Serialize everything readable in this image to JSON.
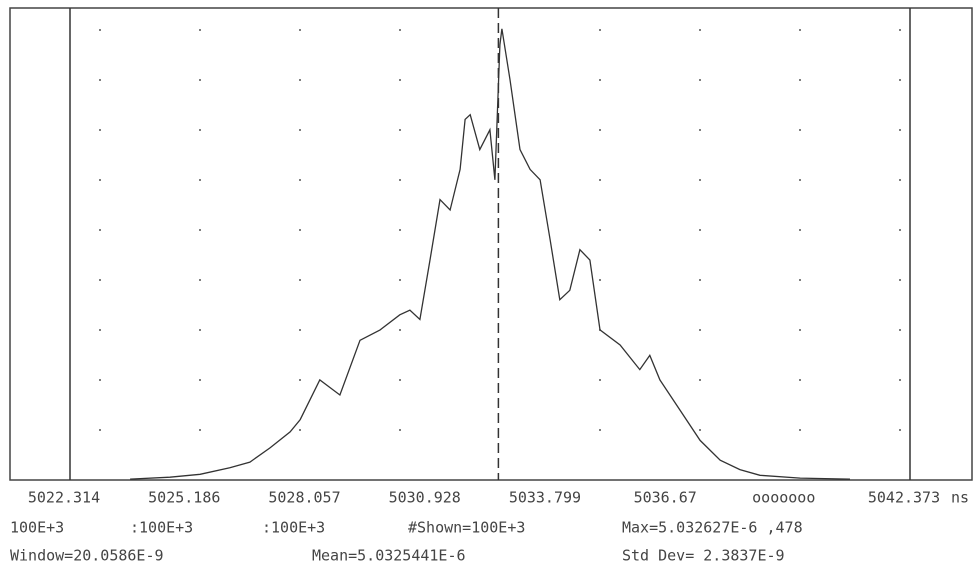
{
  "chart_data": {
    "type": "line",
    "xlabel": "ns",
    "x": [
      5023.75,
      5024.7,
      5025.42,
      5026.13,
      5026.61,
      5027.09,
      5027.57,
      5027.81,
      5028.28,
      5028.76,
      5029.24,
      5029.72,
      5030.19,
      5030.43,
      5030.67,
      5030.91,
      5031.15,
      5031.39,
      5031.63,
      5031.75,
      5031.87,
      5032.1,
      5032.34,
      5032.46,
      5032.58,
      5032.627,
      5032.82,
      5033.06,
      5033.3,
      5033.54,
      5033.78,
      5034.01,
      5034.25,
      5034.49,
      5034.73,
      5034.97,
      5035.45,
      5035.92,
      5036.16,
      5036.4,
      5036.88,
      5037.36,
      5037.84,
      5038.31,
      5038.79,
      5039.75,
      5040.94
    ],
    "series": [
      {
        "color": "#333333",
        "values": [
          1,
          3,
          6,
          13,
          19,
          34,
          51,
          64,
          106,
          90,
          148,
          159,
          175,
          180,
          170,
          233,
          297,
          286,
          329,
          382,
          387,
          350,
          371,
          318,
          461,
          478,
          424,
          350,
          329,
          318,
          254,
          191,
          201,
          244,
          233,
          159,
          143,
          117,
          132,
          106,
          74,
          42,
          21,
          11,
          5,
          2,
          1
        ]
      }
    ],
    "xlim": [
      5022.314,
      5042.373
    ],
    "ylim": [
      0,
      500
    ],
    "xticks": [
      5022.314,
      5025.186,
      5028.057,
      5030.928,
      5033.799,
      5036.67,
      {
        "value": 5039.502,
        "label": "ooooooo"
      },
      5042.373
    ],
    "markers": [
      5032.544
    ],
    "status": [
      [
        "100E+3",
        ":100E+3",
        ":100E+3",
        "#Shown=100E+3",
        "Max=5.032627E-6 ,478"
      ],
      [
        "Window=20.0586E-9",
        "Mean=5.0325441E-6",
        "Std Dev= 2.3837E-9"
      ]
    ]
  }
}
